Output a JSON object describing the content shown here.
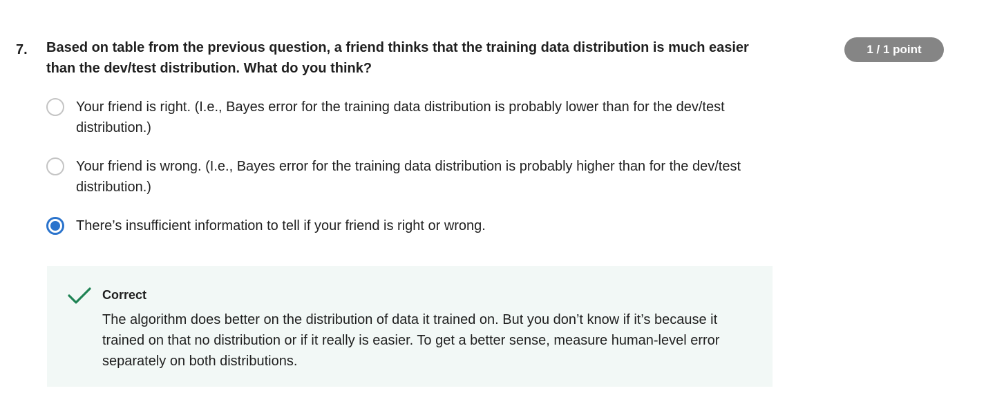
{
  "question": {
    "number": "7.",
    "text": "Based on table from the previous question, a friend thinks that the training data distribution is much easier than the dev/test distribution. What do you think?",
    "points": "1 / 1 point"
  },
  "options": [
    {
      "label": "Your friend is right. (I.e., Bayes error for the training data distribution is probably lower than for the dev/test distribution.)",
      "selected": false
    },
    {
      "label": "Your friend is wrong. (I.e., Bayes error for the training data distribution is probably higher than for the dev/test distribution.)",
      "selected": false
    },
    {
      "label": "There’s insufficient information to tell if your friend is right or wrong.",
      "selected": true
    }
  ],
  "feedback": {
    "icon": "checkmark-icon",
    "title": "Correct",
    "text": "The algorithm does better on the distribution of data it trained on. But you don’t know if it’s because it trained on that no distribution or if it really is easier. To get a better sense, measure human-level error separately on both distributions."
  },
  "colors": {
    "selected_radio": "#2a73cc",
    "badge_background": "#858585",
    "feedback_background": "#f2f8f6",
    "check_green": "#1f8354"
  }
}
